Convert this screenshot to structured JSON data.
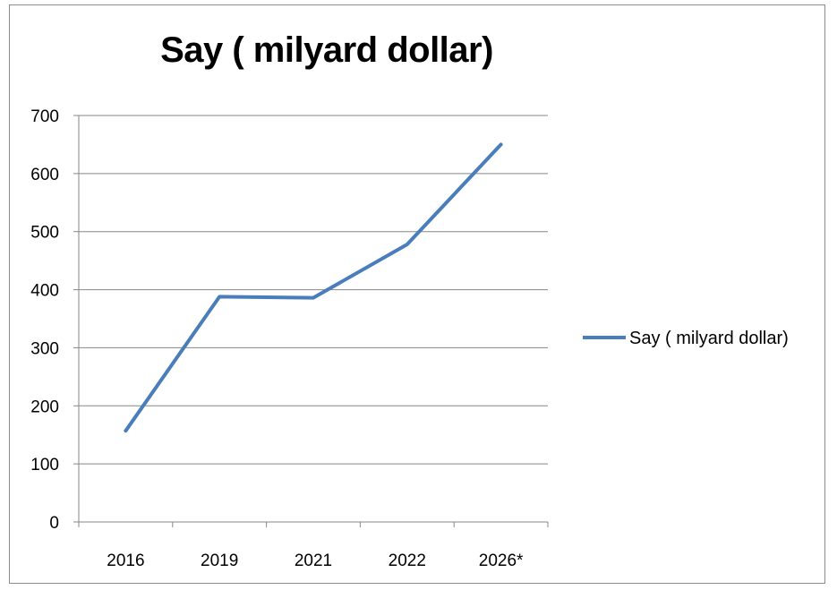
{
  "chart_data": {
    "type": "line",
    "title": "Say ( milyard dollar)",
    "categories": [
      "2016",
      "2019",
      "2021",
      "2022",
      "2026*"
    ],
    "series": [
      {
        "name": "Say ( milyard dollar)",
        "values": [
          157,
          388,
          386,
          478,
          650
        ]
      }
    ],
    "ylim": [
      0,
      700
    ],
    "yticks": [
      0,
      100,
      200,
      300,
      400,
      500,
      600,
      700
    ],
    "grid": true,
    "legend_position": "right",
    "series_color": "#4a7ebb"
  }
}
